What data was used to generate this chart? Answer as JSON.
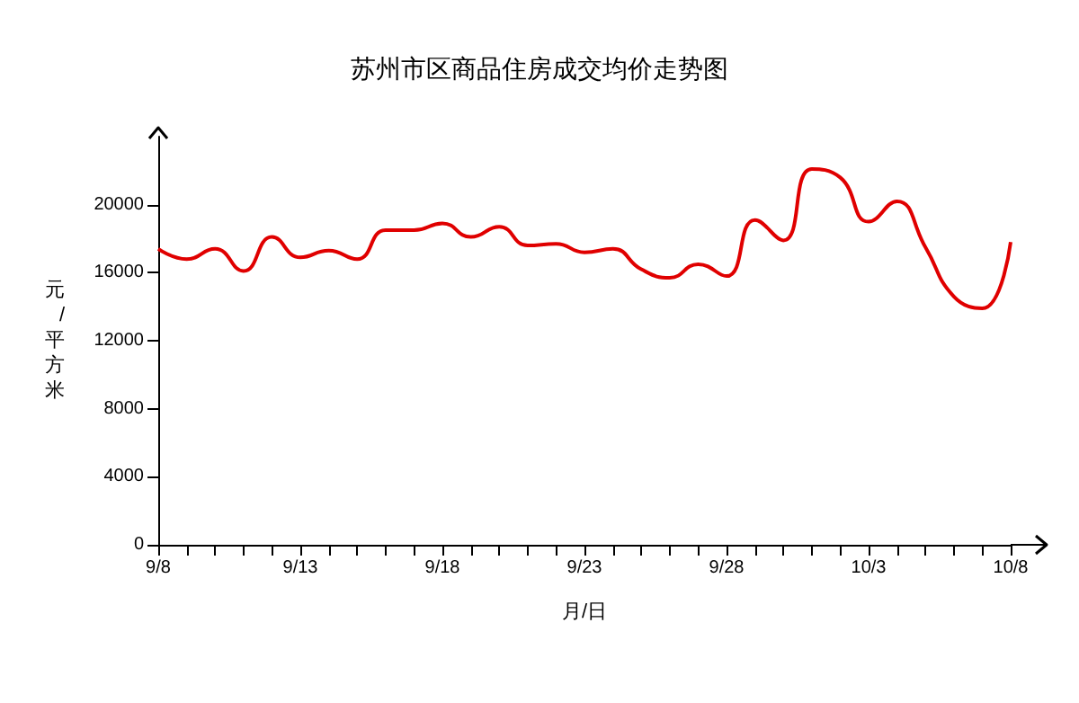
{
  "chart_data": {
    "type": "line",
    "title": "苏州市区商品住房成交均价走势图",
    "xlabel": "月/日",
    "ylabel": "元/平方米",
    "categories": [
      "9/8",
      null,
      null,
      null,
      null,
      "9/13",
      null,
      null,
      null,
      null,
      "9/18",
      null,
      null,
      null,
      null,
      "9/23",
      null,
      null,
      null,
      null,
      "9/28",
      null,
      null,
      null,
      null,
      "10/3",
      null,
      null,
      null,
      null,
      "10/8"
    ],
    "series": [
      {
        "color": "#e00000",
        "values": [
          17400,
          16800,
          17400,
          16100,
          18100,
          16900,
          17300,
          16800,
          18500,
          18500,
          18900,
          18100,
          18700,
          17600,
          17700,
          17200,
          17400,
          16200,
          15700,
          16500,
          15800,
          19100,
          17900,
          22100,
          21600,
          19000,
          20200,
          17500,
          14600,
          13900,
          17800
        ]
      }
    ],
    "ylim": [
      0,
      24000
    ],
    "yticks": [
      0,
      4000,
      8000,
      12000,
      16000,
      20000
    ],
    "grid": false,
    "marker": "none",
    "line_style": "solid"
  }
}
